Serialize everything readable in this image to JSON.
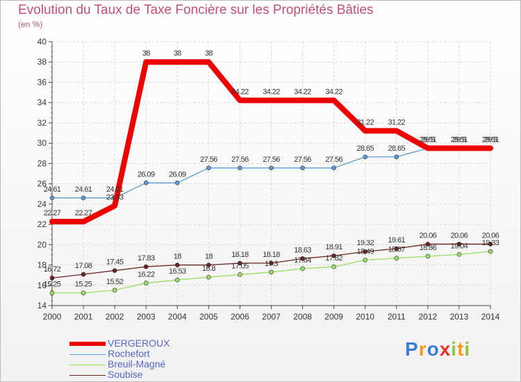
{
  "chart_data": {
    "type": "line",
    "title": "Evolution du Taux de Taxe Foncière sur les Propriétés Bâties",
    "subtitle": "(en %)",
    "xlabel": "",
    "ylabel": "",
    "ylim": [
      14,
      40
    ],
    "yticks": [
      14,
      16,
      18,
      20,
      22,
      24,
      26,
      28,
      30,
      32,
      34,
      36,
      38,
      40
    ],
    "x": [
      2000,
      2001,
      2002,
      2003,
      2004,
      2005,
      2006,
      2007,
      2008,
      2009,
      2010,
      2011,
      2012,
      2013,
      2014
    ],
    "grid": true,
    "legend_position": "bottom-left",
    "series": [
      {
        "name": "VERGEROUX",
        "color": "#ee0000",
        "values": [
          22.27,
          22.27,
          23.83,
          38,
          38,
          38,
          34.22,
          34.22,
          34.22,
          34.22,
          31.22,
          31.22,
          29.51,
          29.51,
          29.51
        ],
        "labels": [
          "22.27",
          "22.27",
          "23.83",
          "38",
          "38",
          "38",
          "34.22",
          "34.22",
          "34.22",
          "34.22",
          "31.22",
          "31.22",
          "29.51",
          "29.51",
          "29.51"
        ]
      },
      {
        "name": "Rochefort",
        "color": "#5b9bd5",
        "values": [
          24.61,
          24.61,
          24.61,
          26.09,
          26.09,
          27.56,
          27.56,
          27.56,
          27.56,
          27.56,
          28.65,
          28.65,
          29.5,
          29.5,
          29.5
        ],
        "labels": [
          "24.61",
          "24.61",
          "24.61",
          "26.09",
          "26.09",
          "27.56",
          "27.56",
          "27.56",
          "27.56",
          "27.56",
          "28.65",
          "28.65",
          "29.5",
          "29.5",
          "29.5"
        ]
      },
      {
        "name": "Breuil-Magné",
        "color": "#99dd66",
        "values": [
          15.25,
          15.25,
          15.52,
          16.22,
          16.53,
          16.8,
          17.05,
          17.3,
          17.64,
          17.82,
          18.49,
          18.67,
          18.86,
          19.04,
          19.33
        ],
        "labels": [
          "15.25",
          "15.25",
          "15.52",
          "16.22",
          "16.53",
          "16.8",
          "17.05",
          "17.3",
          "17.64",
          "17.82",
          "18.49",
          "18.67",
          "18.86",
          "19.04",
          "19.33"
        ]
      },
      {
        "name": "Soubise",
        "color": "#6b2222",
        "values": [
          16.72,
          17.08,
          17.45,
          17.83,
          18,
          18,
          18.18,
          18.18,
          18.63,
          18.91,
          19.32,
          19.61,
          20.06,
          20.06,
          20.06
        ],
        "labels": [
          "16.72",
          "17.08",
          "17.45",
          "17.83",
          "18",
          "18",
          "18.18",
          "18.18",
          "18.63",
          "18.91",
          "19.32",
          "19.61",
          "20.06",
          "20.06",
          "20.06"
        ]
      }
    ]
  },
  "legend": {
    "items": [
      {
        "label": "VERGEROUX",
        "color": "#ee0000"
      },
      {
        "label": "Rochefort",
        "color": "#5b9bd5"
      },
      {
        "label": "Breuil-Magné",
        "color": "#99dd66"
      },
      {
        "label": "Soubise",
        "color": "#6b2222"
      }
    ]
  },
  "logo": {
    "letters": [
      "P",
      "r",
      "o",
      "x",
      "i",
      "t",
      "i"
    ],
    "colors": [
      "#3b7dd8",
      "#f29a1e",
      "#3b7dd8",
      "#e5322b",
      "#8cc63f",
      "#f29a1e",
      "#8cc63f"
    ]
  }
}
